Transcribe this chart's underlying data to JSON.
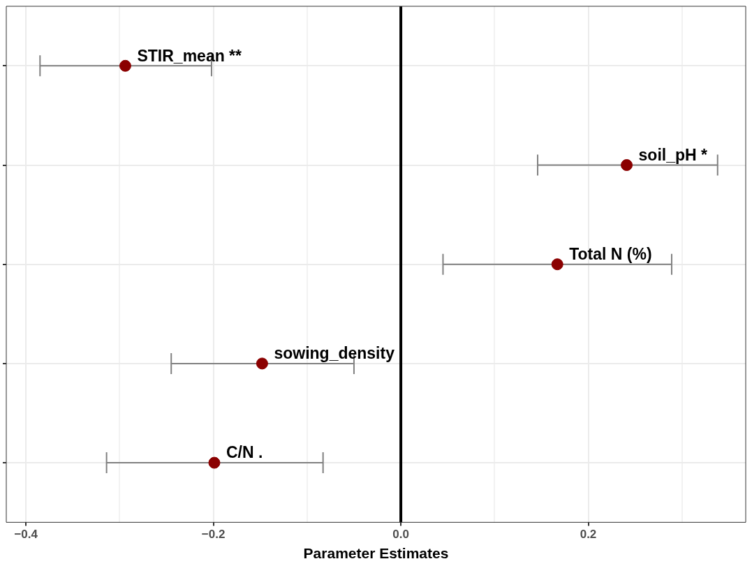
{
  "chart_data": {
    "type": "scatter",
    "orientation": "horizontal",
    "xlabel": "Parameter Estimates",
    "categories": [
      "STIR_mean **",
      "soil_pH *",
      "Total N (%)",
      "sowing_density",
      "C/N ."
    ],
    "series": [
      {
        "color": "#8b0000",
        "values": [
          -0.294,
          0.241,
          0.167,
          -0.148,
          -0.199
        ],
        "errors": [
          [
            -0.385,
            -0.202
          ],
          [
            0.146,
            0.338
          ],
          [
            0.045,
            0.289
          ],
          [
            -0.245,
            -0.05
          ],
          [
            -0.314,
            -0.083
          ]
        ]
      }
    ],
    "xlim": [
      -0.421,
      0.368
    ],
    "xticks": [
      {
        "value": -0.4,
        "label": "−0.4"
      },
      {
        "value": -0.3,
        "label": null
      },
      {
        "value": -0.2,
        "label": "−0.2"
      },
      {
        "value": -0.1,
        "label": null
      },
      {
        "value": 0,
        "label": "0.0"
      },
      {
        "value": 0.1,
        "label": null
      },
      {
        "value": 0.2,
        "label": "0.2"
      },
      {
        "value": 0.3,
        "label": null
      }
    ],
    "ref_lines": [
      {
        "axis": "x",
        "value": 0,
        "color": "#000000"
      }
    ],
    "grid": true,
    "marker": "circle",
    "tick_labels": "x"
  }
}
